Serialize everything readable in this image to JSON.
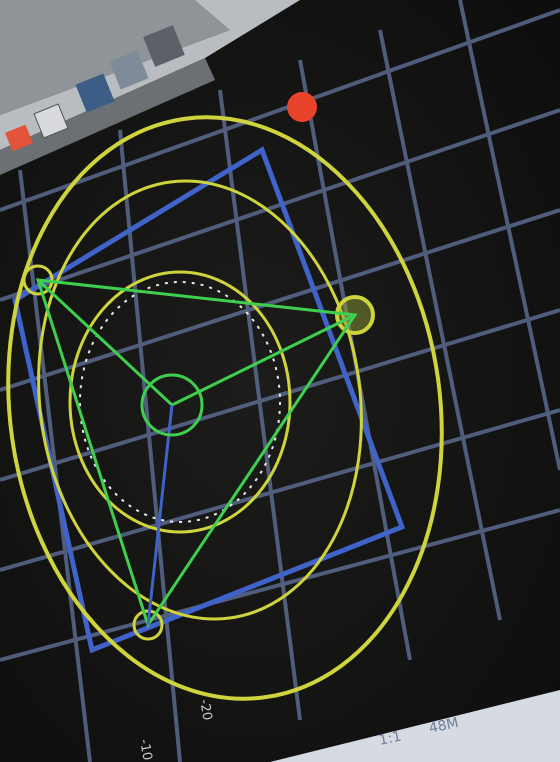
{
  "axis_labels": [
    "-10",
    "-20"
  ],
  "status_bar": [
    "1:1",
    "48M"
  ]
}
